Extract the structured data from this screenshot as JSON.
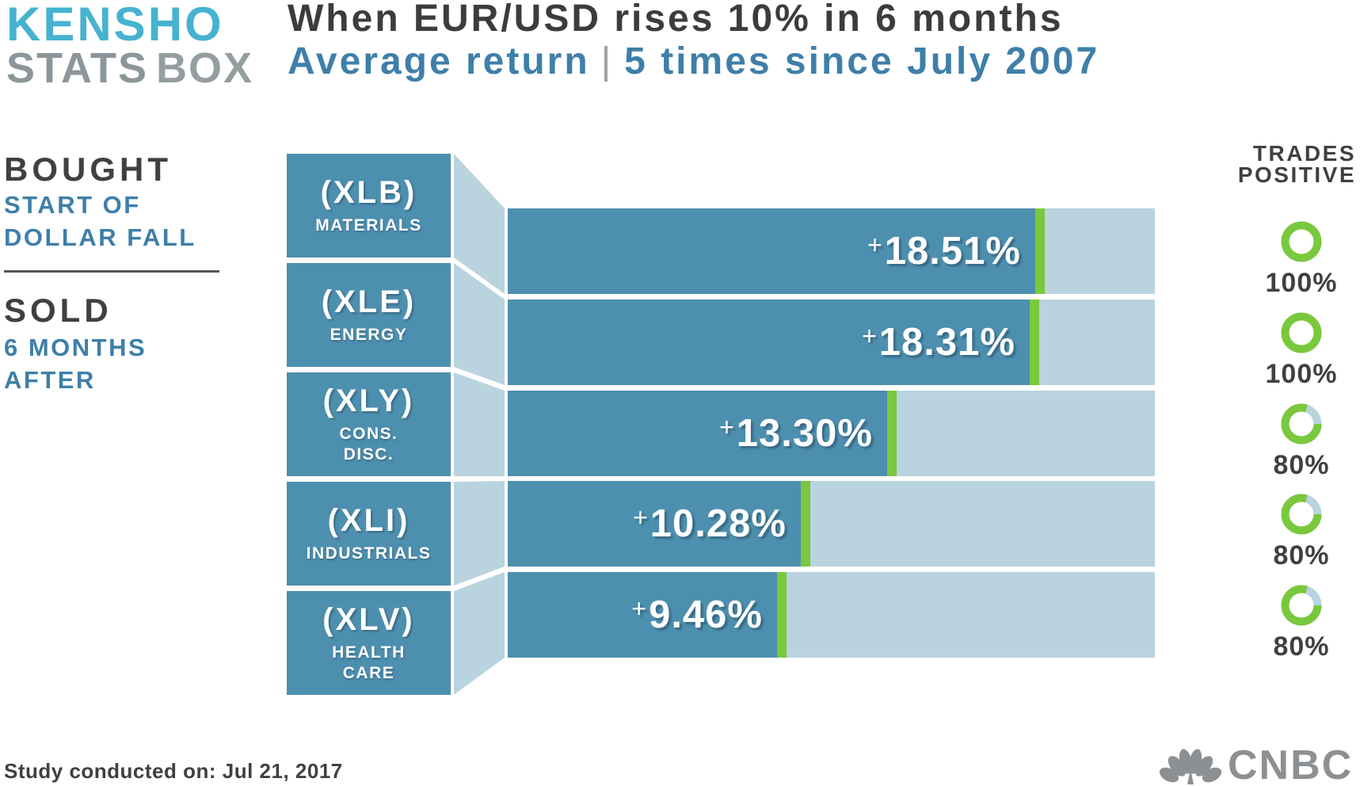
{
  "logo": {
    "kensho": "KENSHO",
    "stats": "STATS",
    "box": "BOX"
  },
  "title": {
    "line1": "When EUR/USD rises 10% in 6 months",
    "line2_left": "Average return",
    "separator": "|",
    "line2_right": "5 times since July 2007"
  },
  "left_panel": {
    "bought_label": "BOUGHT",
    "bought_desc": "START OF\nDOLLAR FALL",
    "sold_label": "SOLD",
    "sold_desc": "6 MONTHS\nAFTER"
  },
  "right_panel": {
    "heading": "TRADES\nPOSITIVE"
  },
  "footer": {
    "study_note": "Study conducted on: Jul 21, 2017",
    "brand": "CNBC"
  },
  "colors": {
    "steel_blue": "#4D8FAF",
    "pale_blue": "#B9D3DF",
    "green": "#79C83D",
    "accent_blue": "#3E7FA9",
    "dark_text": "#3F4043",
    "kensho_cyan": "#45B3D0",
    "logo_gray": "#8C969A",
    "cnbc_gray": "#8D9093",
    "divider_gray": "#55575B",
    "title_gray": "#3C3C3E",
    "separator_gray": "#9DA0A3"
  },
  "chart_data": {
    "type": "bar",
    "orientation": "horizontal",
    "title": "When EUR/USD rises 10% in 6 months",
    "subtitle": "Average return | 5 times since July 2007",
    "sample_size_note": "5 times since July 2007",
    "value_axis": {
      "units": "%",
      "min": 0,
      "max_display": 22.7,
      "gridlines": false
    },
    "legend": "none",
    "rows": [
      {
        "ticker": "(XLB)",
        "sector": "MATERIALS",
        "value": 18.51,
        "value_label": "+18.51%",
        "trades_positive": 100,
        "trades_label": "100%"
      },
      {
        "ticker": "(XLE)",
        "sector": "ENERGY",
        "value": 18.31,
        "value_label": "+18.31%",
        "trades_positive": 100,
        "trades_label": "100%"
      },
      {
        "ticker": "(XLY)",
        "sector": "CONS.\nDISC.",
        "value": 13.3,
        "value_label": "+13.30%",
        "trades_positive": 80,
        "trades_label": "80%"
      },
      {
        "ticker": "(XLI)",
        "sector": "INDUSTRIALS",
        "value": 10.28,
        "value_label": "+10.28%",
        "trades_positive": 80,
        "trades_label": "80%"
      },
      {
        "ticker": "(XLV)",
        "sector": "HEALTH\nCARE",
        "value": 9.46,
        "value_label": "+9.46%",
        "trades_positive": 80,
        "trades_label": "80%"
      }
    ]
  }
}
